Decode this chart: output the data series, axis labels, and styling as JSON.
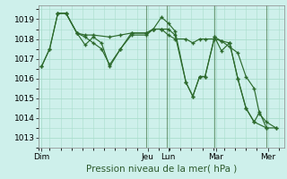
{
  "title": "",
  "xlabel": "Pression niveau de la mer( hPa )",
  "ylabel": "",
  "background_color": "#cef0eb",
  "grid_color": "#aaddcc",
  "line_color": "#2d6a2d",
  "ylim": [
    1012.5,
    1019.7
  ],
  "yticks": [
    1013,
    1014,
    1015,
    1016,
    1017,
    1018,
    1019
  ],
  "xlim": [
    0,
    180
  ],
  "day_labels": [
    "Dim",
    "Jeu",
    "Lun",
    "Mar",
    "Mer"
  ],
  "day_positions": [
    2,
    80,
    95,
    130,
    168
  ],
  "vline_positions": [
    79,
    94,
    129,
    167
  ],
  "vline_color": "#44664466",
  "series": [
    [
      [
        2,
        1016.6
      ],
      [
        8,
        1017.5
      ],
      [
        14,
        1019.3
      ],
      [
        20,
        1019.3
      ],
      [
        28,
        1018.3
      ],
      [
        34,
        1018.1
      ],
      [
        40,
        1017.8
      ],
      [
        46,
        1017.5
      ],
      [
        52,
        1016.7
      ],
      [
        60,
        1017.5
      ],
      [
        68,
        1018.2
      ],
      [
        79,
        1018.2
      ],
      [
        84,
        1018.5
      ],
      [
        90,
        1019.1
      ],
      [
        95,
        1018.8
      ],
      [
        100,
        1018.4
      ],
      [
        108,
        1015.8
      ],
      [
        113,
        1015.1
      ],
      [
        118,
        1016.1
      ],
      [
        122,
        1016.1
      ],
      [
        129,
        1018.1
      ],
      [
        134,
        1017.4
      ],
      [
        140,
        1017.8
      ],
      [
        146,
        1016.0
      ],
      [
        152,
        1014.5
      ],
      [
        158,
        1013.8
      ],
      [
        162,
        1014.3
      ],
      [
        167,
        1013.5
      ],
      [
        174,
        1013.5
      ]
    ],
    [
      [
        2,
        1016.6
      ],
      [
        8,
        1017.5
      ],
      [
        14,
        1019.3
      ],
      [
        20,
        1019.3
      ],
      [
        28,
        1018.3
      ],
      [
        34,
        1017.7
      ],
      [
        40,
        1018.1
      ],
      [
        46,
        1017.8
      ],
      [
        52,
        1016.6
      ],
      [
        60,
        1017.5
      ],
      [
        68,
        1018.3
      ],
      [
        79,
        1018.3
      ],
      [
        84,
        1018.5
      ],
      [
        90,
        1018.5
      ],
      [
        95,
        1018.5
      ],
      [
        100,
        1018.2
      ],
      [
        108,
        1015.8
      ],
      [
        113,
        1015.1
      ],
      [
        118,
        1016.1
      ],
      [
        122,
        1016.1
      ],
      [
        129,
        1018.1
      ],
      [
        134,
        1017.9
      ],
      [
        140,
        1017.8
      ],
      [
        146,
        1016.0
      ],
      [
        152,
        1014.5
      ],
      [
        158,
        1013.8
      ],
      [
        167,
        1013.5
      ]
    ],
    [
      [
        14,
        1019.3
      ],
      [
        20,
        1019.3
      ],
      [
        28,
        1018.3
      ],
      [
        34,
        1018.2
      ],
      [
        40,
        1018.2
      ],
      [
        52,
        1018.1
      ],
      [
        60,
        1018.2
      ],
      [
        68,
        1018.3
      ],
      [
        79,
        1018.3
      ],
      [
        84,
        1018.5
      ],
      [
        90,
        1018.5
      ],
      [
        95,
        1018.2
      ],
      [
        100,
        1018.0
      ],
      [
        108,
        1018.0
      ],
      [
        113,
        1017.8
      ],
      [
        118,
        1018.0
      ],
      [
        122,
        1018.0
      ],
      [
        129,
        1018.0
      ],
      [
        134,
        1017.9
      ],
      [
        140,
        1017.6
      ],
      [
        146,
        1017.3
      ],
      [
        152,
        1016.1
      ],
      [
        158,
        1015.5
      ],
      [
        162,
        1014.2
      ],
      [
        167,
        1013.8
      ],
      [
        174,
        1013.5
      ]
    ]
  ]
}
